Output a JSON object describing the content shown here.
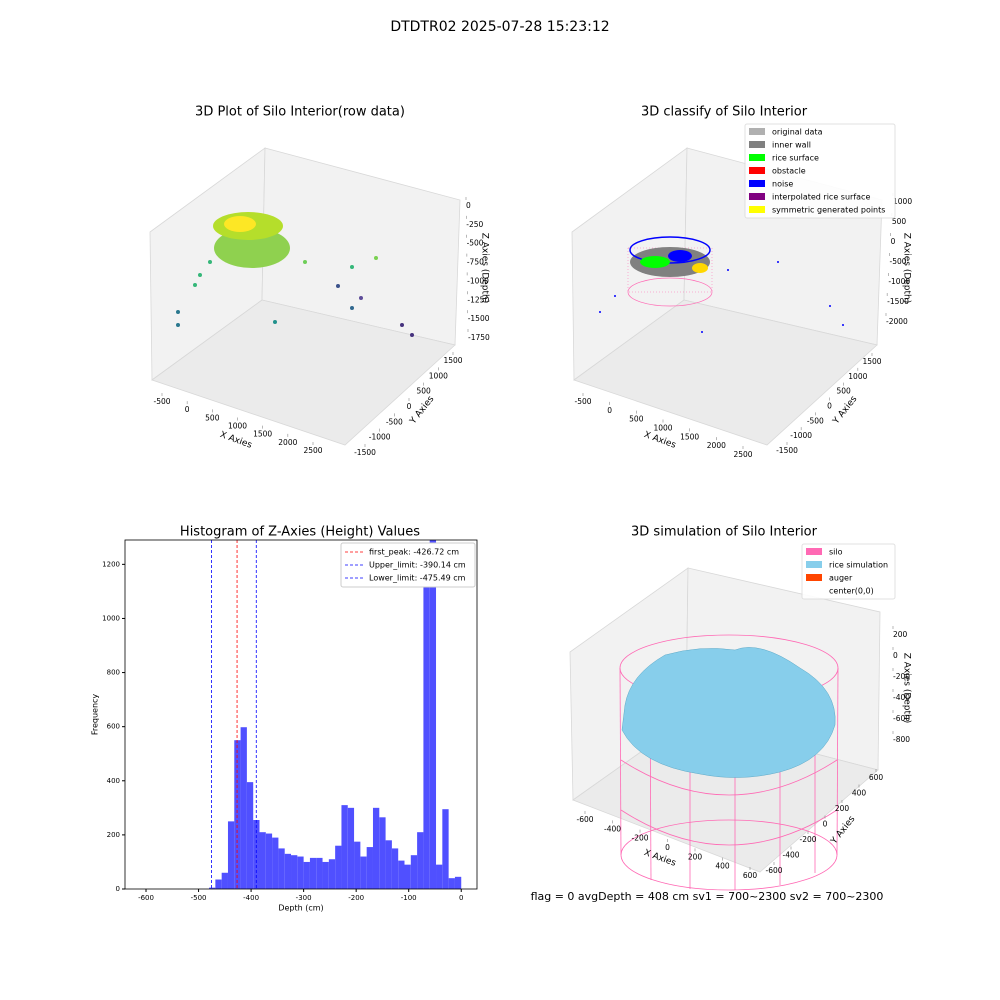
{
  "title": "DTDTR02 2025-07-28 15:23:12",
  "footer": "flag = 0     avgDepth = 408 cm  sv1 = 700~2300  sv2 = 700~2300",
  "chart_data": [
    {
      "type": "scatter3d",
      "title": "3D Plot of Silo Interior(row data)",
      "xlabel": "X Axies",
      "ylabel": "Y Axies",
      "zlabel": "Z Axies (Depth)",
      "xticks": [
        -500,
        0,
        500,
        1000,
        1500,
        2000,
        2500
      ],
      "yticks": [
        -1500,
        -1000,
        -500,
        0,
        500,
        1000,
        1500
      ],
      "zticks": [
        0,
        -250,
        -500,
        -750,
        -1000,
        -1250,
        -1500,
        -1750
      ]
    },
    {
      "type": "scatter3d",
      "title": "3D classify of Silo Interior",
      "xlabel": "X Axies",
      "ylabel": "Y Axies",
      "zlabel": "Z Axies (Depth)",
      "xticks": [
        -500,
        0,
        500,
        1000,
        1500,
        2000,
        2500
      ],
      "yticks": [
        -1500,
        -1000,
        -500,
        0,
        500,
        1000,
        1500
      ],
      "zticks": [
        1000,
        500,
        0,
        -500,
        -1000,
        -1500,
        -2000
      ],
      "legend": "upper right",
      "series": [
        {
          "name": "original data",
          "color": "#b0b0b0"
        },
        {
          "name": "inner wall",
          "color": "#808080"
        },
        {
          "name": "rice surface",
          "color": "#00ff00"
        },
        {
          "name": "obstacle",
          "color": "#ff0000"
        },
        {
          "name": "noise",
          "color": "#0000ff"
        },
        {
          "name": "interpolated rice surface",
          "color": "#800080"
        },
        {
          "name": "symmetric generated points",
          "color": "#ffff00"
        }
      ]
    },
    {
      "type": "histogram",
      "title": "Histogram of Z-Axies (Height) Values",
      "xlabel": "Depth (cm)",
      "ylabel": "Frequency",
      "color": "#5050ff",
      "bins": [
        -480,
        -468,
        -456,
        -444,
        -432,
        -420,
        -408,
        -396,
        -384,
        -372,
        -360,
        -348,
        -336,
        -324,
        -312,
        -300,
        -288,
        -276,
        -264,
        -252,
        -240,
        -228,
        -216,
        -204,
        -192,
        -180,
        -168,
        -156,
        -144,
        -132,
        -120,
        -108,
        -96,
        -84,
        -72,
        -60,
        -48,
        -36,
        -24,
        -12,
        0
      ],
      "counts": [
        5,
        35,
        60,
        250,
        550,
        598,
        395,
        255,
        210,
        205,
        190,
        150,
        130,
        125,
        120,
        100,
        115,
        115,
        100,
        110,
        160,
        310,
        300,
        175,
        120,
        155,
        300,
        265,
        180,
        150,
        105,
        90,
        125,
        210,
        1200,
        1290,
        90,
        295,
        40,
        45
      ],
      "xlim": [
        -640,
        30
      ],
      "ylim": [
        0,
        1290
      ],
      "xticks": [
        -600,
        -500,
        -400,
        -300,
        -200,
        -100,
        0
      ],
      "yticks": [
        0,
        200,
        400,
        600,
        800,
        1000,
        1200
      ],
      "legend": "upper right",
      "vlines": [
        {
          "label": "first_peak: -426.72 cm",
          "value": -426.72,
          "color": "#ff0000"
        },
        {
          "label": "Upper_limit: -390.14 cm",
          "value": -390.14,
          "color": "#0000ff"
        },
        {
          "label": "Lower_limit: -475.49 cm",
          "value": -475.49,
          "color": "#0000ff"
        }
      ]
    },
    {
      "type": "surface3d",
      "title": "3D simulation of Silo Interior",
      "xlabel": "X Axies",
      "ylabel": "Y Axies",
      "zlabel": "Z Axies (Depth)",
      "xticks": [
        -600,
        -400,
        -200,
        0,
        200,
        400,
        600
      ],
      "yticks": [
        -600,
        -400,
        -200,
        0,
        200,
        400,
        600
      ],
      "zticks": [
        200,
        0,
        -200,
        -400,
        -600,
        -800
      ],
      "legend": "upper right",
      "series": [
        {
          "name": "silo",
          "color": "#ff69b4"
        },
        {
          "name": "rice simulation",
          "color": "#87ceeb"
        },
        {
          "name": "auger",
          "color": "#ff4500"
        },
        {
          "name": "center(0,0)",
          "color": "#ffffff"
        }
      ]
    }
  ]
}
